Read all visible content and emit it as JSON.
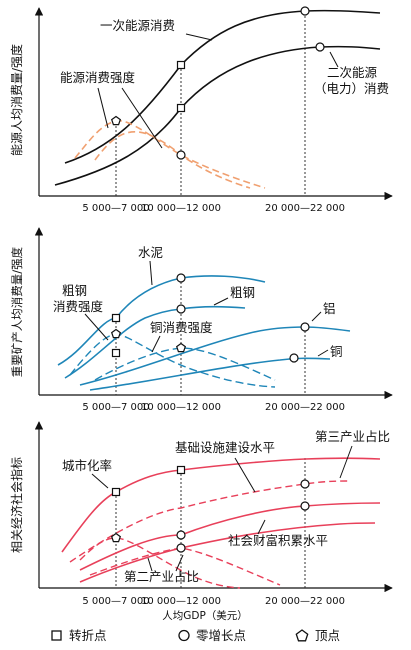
{
  "panels": [
    {
      "y_label": "能源人均消费量/强度",
      "labels": {
        "primary": "一次能源消费",
        "intensity": "能源消费强度",
        "secondary_1": "二次能源",
        "secondary_2": "（电力）消费"
      }
    },
    {
      "y_label": "重要矿产人均消费量/强度",
      "labels": {
        "cement": "水泥",
        "steel": "粗钢",
        "steel_intensity_1": "粗钢",
        "steel_intensity_2": "消费强度",
        "copper_intensity": "铜消费强度",
        "aluminum": "铝",
        "copper": "铜"
      }
    },
    {
      "y_label": "相关经济社会指标",
      "labels": {
        "urbanization": "城市化率",
        "infrastructure": "基础设施建设水平",
        "tertiary": "第三产业占比",
        "wealth": "社会财富积累水平",
        "secondary": "第二产业占比"
      }
    }
  ],
  "x_ticks": [
    "5 000—7 000",
    "10 000—12 000",
    "20 000—22 000"
  ],
  "x_label": "人均GDP（美元）",
  "legend": [
    {
      "symbol": "square",
      "label": "转折点"
    },
    {
      "symbol": "circle",
      "label": "零增长点"
    },
    {
      "symbol": "pentagon",
      "label": "顶点"
    }
  ],
  "colors": {
    "panel1": "#111111",
    "panel1_intensity": "#f0a070",
    "panel2": "#1f86b8",
    "panel3": "#e8405a"
  }
}
